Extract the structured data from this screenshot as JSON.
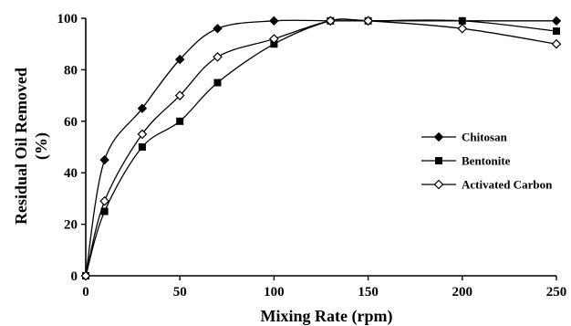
{
  "chart_data": {
    "type": "line",
    "title": "",
    "xlabel": "Mixing Rate (rpm)",
    "ylabel_line1": "Residual Oil Removed",
    "ylabel_line2": "(%)",
    "xlim": [
      0,
      250
    ],
    "ylim": [
      0,
      100
    ],
    "xticks": [
      0,
      50,
      100,
      150,
      200,
      250
    ],
    "yticks": [
      0,
      20,
      40,
      60,
      80,
      100
    ],
    "grid": false,
    "legend_position": "right",
    "series": [
      {
        "name": "Chitosan",
        "marker": "filled-diamond",
        "x": [
          0,
          10,
          30,
          50,
          70,
          100,
          130,
          150,
          250
        ],
        "y": [
          0,
          45,
          65,
          84,
          96,
          99,
          99,
          99,
          99
        ]
      },
      {
        "name": "Bentonite",
        "marker": "filled-square",
        "x": [
          0,
          10,
          30,
          50,
          70,
          100,
          130,
          150,
          200,
          250
        ],
        "y": [
          0,
          25,
          50,
          60,
          75,
          90,
          99,
          99,
          99,
          95
        ]
      },
      {
        "name": "Activated Carbon",
        "marker": "open-diamond",
        "x": [
          0,
          10,
          30,
          50,
          70,
          100,
          130,
          150,
          200,
          250
        ],
        "y": [
          0,
          29,
          55,
          70,
          85,
          92,
          99,
          99,
          96,
          90
        ]
      }
    ]
  }
}
